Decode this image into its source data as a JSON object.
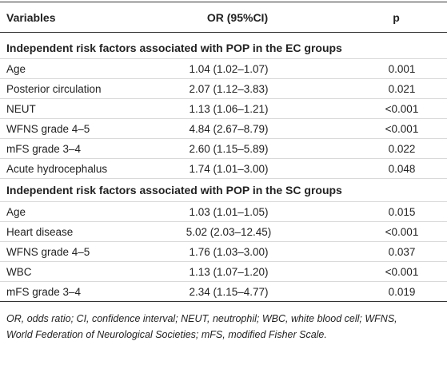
{
  "table": {
    "headers": {
      "variables": "Variables",
      "or": "OR (95%CI)",
      "p": "p"
    },
    "sections": [
      {
        "title": "Independent risk factors associated with POP in the EC groups",
        "rows": [
          {
            "variable": "Age",
            "or": "1.04 (1.02–1.07)",
            "p": "0.001"
          },
          {
            "variable": "Posterior circulation",
            "or": "2.07 (1.12–3.83)",
            "p": "0.021"
          },
          {
            "variable": "NEUT",
            "or": "1.13 (1.06–1.21)",
            "p": "<0.001"
          },
          {
            "variable": "WFNS grade 4–5",
            "or": "4.84 (2.67–8.79)",
            "p": "<0.001"
          },
          {
            "variable": "mFS grade 3–4",
            "or": "2.60 (1.15–5.89)",
            "p": "0.022"
          },
          {
            "variable": "Acute hydrocephalus",
            "or": "1.74 (1.01–3.00)",
            "p": "0.048"
          }
        ]
      },
      {
        "title": "Independent risk factors associated with POP in the SC groups",
        "rows": [
          {
            "variable": "Age",
            "or": "1.03 (1.01–1.05)",
            "p": "0.015"
          },
          {
            "variable": "Heart disease",
            "or": "5.02 (2.03–12.45)",
            "p": "<0.001"
          },
          {
            "variable": "WFNS grade 4–5",
            "or": "1.76 (1.03–3.00)",
            "p": "0.037"
          },
          {
            "variable": "WBC",
            "or": "1.13 (1.07–1.20)",
            "p": "<0.001"
          },
          {
            "variable": "mFS grade 3–4",
            "or": "2.34 (1.15–4.77)",
            "p": "0.019"
          }
        ]
      }
    ]
  },
  "footnote": {
    "line1": "OR, odds ratio; CI, confidence interval; NEUT, neutrophil; WBC, white blood cell; WFNS,",
    "line2": "World Federation of Neurological Societies; mFS, modified Fisher Scale."
  }
}
